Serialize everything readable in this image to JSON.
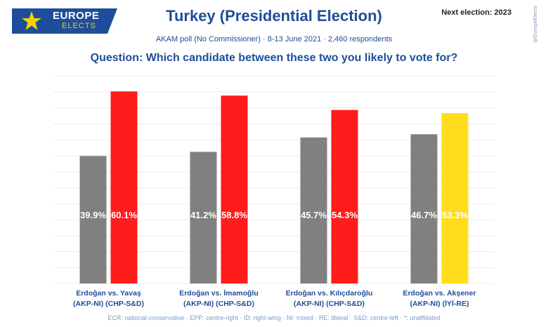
{
  "header": {
    "logo_line1": "EUROPE",
    "logo_line2": "ELECTS",
    "title": "Turkey (Presidential Election)",
    "next_election": "Next election: 2023",
    "credit": "@EuropeElects",
    "subtitle": "AKAM poll (No Commissioner) · 8-13 June 2021 · 2,460 respondents",
    "question": "Question: Which candidate between these two you likely to vote for?"
  },
  "footer": "ECR: national-conservative · EPP: centre-right · ID: right-wing · NI: mixed · RE: liberal · S&D: centre-left · *: unaffiliated",
  "colors": {
    "akp": "#808080",
    "chp": "#ff1c1c",
    "iyi": "#ffdd1c",
    "title": "#1e4d9b",
    "logo_bg": "#1e4d9b",
    "logo_accent": "#f5d000"
  },
  "chart_data": {
    "type": "bar",
    "ylim": [
      0,
      65
    ],
    "grid": true,
    "groups": [
      {
        "label_line1": "Erdoğan vs. Yavaş",
        "label_line2": "(AKP-NI) (CHP-S&D)",
        "bars": [
          {
            "candidate": "Erdoğan",
            "party": "AKP-NI",
            "value": 39.9,
            "label": "39.9%",
            "color": "#808080"
          },
          {
            "candidate": "Yavaş",
            "party": "CHP-S&D",
            "value": 60.1,
            "label": "60.1%",
            "color": "#ff1c1c"
          }
        ]
      },
      {
        "label_line1": "Erdoğan vs. İmamoğlu",
        "label_line2": "(AKP-NI) (CHP-S&D)",
        "bars": [
          {
            "candidate": "Erdoğan",
            "party": "AKP-NI",
            "value": 41.2,
            "label": "41.2%",
            "color": "#808080"
          },
          {
            "candidate": "İmamoğlu",
            "party": "CHP-S&D",
            "value": 58.8,
            "label": "58.8%",
            "color": "#ff1c1c"
          }
        ]
      },
      {
        "label_line1": "Erdoğan vs. Kılıçdaroğlu",
        "label_line2": "(AKP-NI) (CHP-S&D)",
        "bars": [
          {
            "candidate": "Erdoğan",
            "party": "AKP-NI",
            "value": 45.7,
            "label": "45.7%",
            "color": "#808080"
          },
          {
            "candidate": "Kılıçdaroğlu",
            "party": "CHP-S&D",
            "value": 54.3,
            "label": "54.3%",
            "color": "#ff1c1c"
          }
        ]
      },
      {
        "label_line1": "Erdoğan vs. Akşener",
        "label_line2": "(AKP-NI) (İYİ-RE)",
        "bars": [
          {
            "candidate": "Erdoğan",
            "party": "AKP-NI",
            "value": 46.7,
            "label": "46.7%",
            "color": "#808080"
          },
          {
            "candidate": "Akşener",
            "party": "İYİ-RE",
            "value": 53.3,
            "label": "53.3%",
            "color": "#ffdd1c"
          }
        ]
      }
    ]
  }
}
